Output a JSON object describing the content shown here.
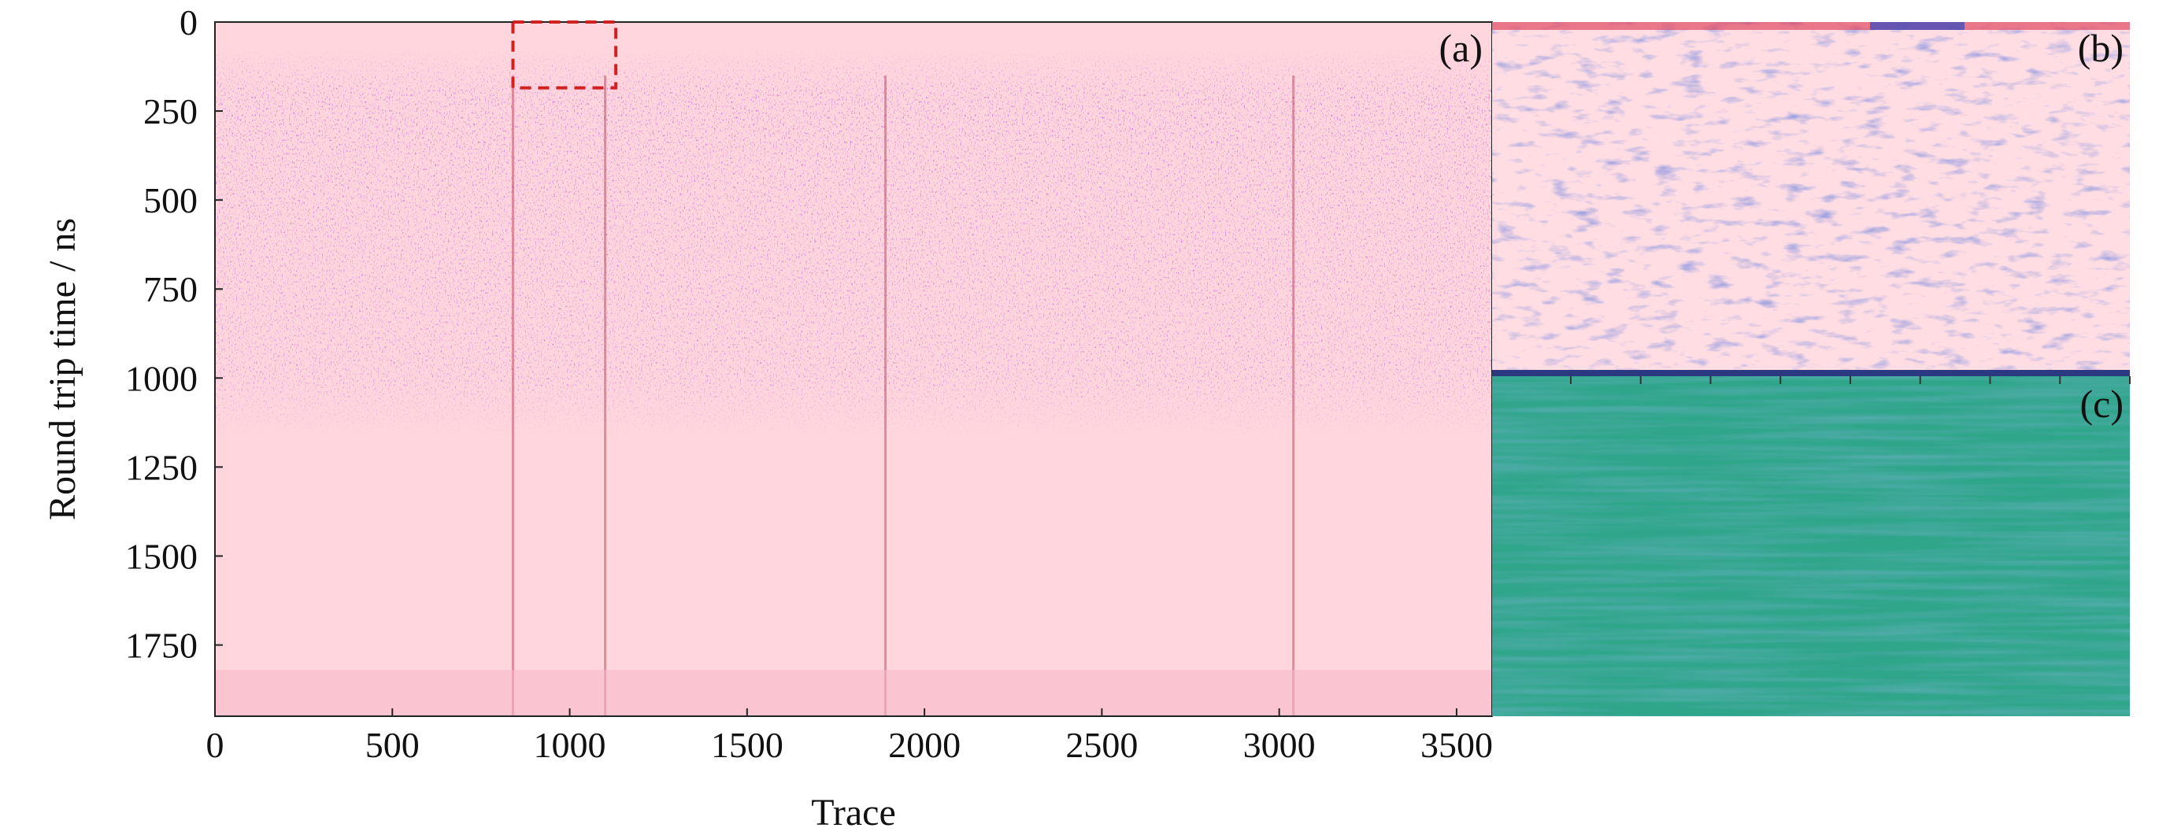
{
  "chart_data": [
    {
      "panel": "(a)",
      "type": "heatmap",
      "title": "",
      "xlabel": "Trace",
      "ylabel": "Round trip time / ns",
      "xlim": [
        0,
        3600
      ],
      "ylim": [
        1950,
        0
      ],
      "y_inverted": true,
      "x_ticks": [
        0,
        500,
        1000,
        1500,
        2000,
        2500,
        3000,
        3500
      ],
      "y_ticks": [
        0,
        250,
        500,
        750,
        1000,
        1250,
        1500,
        1750
      ],
      "colormap": [
        "#3a3aa0",
        "#ffd6dd",
        "#d01c3a"
      ],
      "strong_reflection_band_ns": [
        160,
        900
      ],
      "vertical_streak_traces": [
        840,
        1100,
        1890,
        3040
      ],
      "highlight_box": {
        "x": [
          840,
          1130
        ],
        "y": [
          0,
          185
        ],
        "color": "#d02020",
        "style": "dashed"
      },
      "background": "#ffd6dd"
    },
    {
      "panel": "(b)",
      "type": "heatmap",
      "description_of": "zoom of highlighted box",
      "colormap": [
        "#2a3fb5",
        "#ffe0e6",
        "#d01c3a"
      ],
      "background": "#ffdde3"
    },
    {
      "panel": "(c)",
      "type": "heatmap",
      "colormap": [
        "#2f6f8f",
        "#2fa58a",
        "#3dbb84"
      ],
      "background": "#2fa58a",
      "top_edge_color": "#2b3a80"
    }
  ],
  "labels": {
    "a": "(a)",
    "b": "(b)",
    "c": "(c)"
  }
}
